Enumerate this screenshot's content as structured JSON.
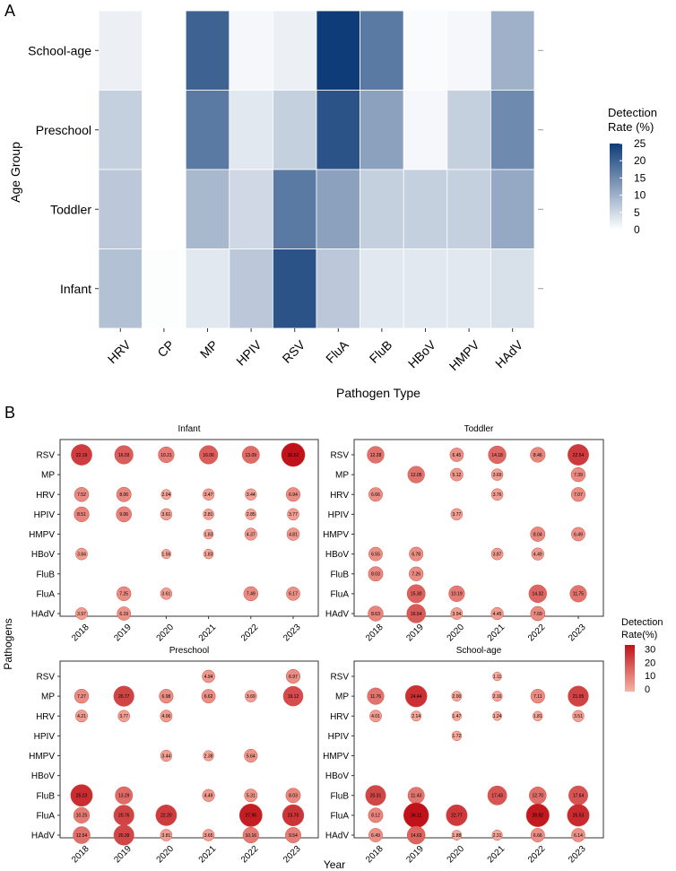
{
  "panel_a": {
    "label": "A"
  },
  "panel_b": {
    "label": "B"
  },
  "chart_data": [
    {
      "type": "heatmap",
      "xlabel": "Pathogen Type",
      "ylabel": "Age Group",
      "x_categories": [
        "HRV",
        "CP",
        "MP",
        "HPIV",
        "RSV",
        "FluA",
        "FluB",
        "HBoV",
        "HMPV",
        "HAdV"
      ],
      "y_categories": [
        "School-age",
        "Preschool",
        "Toddler",
        "Infant"
      ],
      "values": [
        [
          2,
          0,
          20,
          1,
          2,
          25,
          17,
          0.5,
          1,
          10
        ],
        [
          6,
          0,
          17,
          3,
          6,
          22,
          12,
          1,
          6,
          15
        ],
        [
          7,
          0,
          9,
          5,
          17,
          12,
          6,
          6,
          6,
          11
        ],
        [
          8,
          0.3,
          3,
          7,
          22,
          7,
          3,
          3,
          3,
          4
        ]
      ],
      "legend": {
        "title": "Detection Rate (%)",
        "ticks": [
          0,
          5,
          10,
          15,
          20,
          25
        ],
        "position": "right"
      },
      "color_scale": {
        "low": "#ffffff",
        "high": "#0e3c78"
      }
    },
    {
      "type": "scatter",
      "subtype": "bubble-facets",
      "xlabel": "Year",
      "ylabel": "Pathogens",
      "years": [
        "2018",
        "2019",
        "2020",
        "2021",
        "2022",
        "2023"
      ],
      "legend": {
        "title": "Detection Rate(%)",
        "ticks": [
          0,
          10,
          20,
          30
        ],
        "position": "right"
      },
      "facets": [
        {
          "title": "Infant",
          "pathogens": [
            "RSV",
            "MP",
            "HRV",
            "HPIV",
            "HMPV",
            "HBoV",
            "FluB",
            "FluA",
            "HAdV"
          ],
          "values": [
            [
              22.19,
              16.03,
              10.21,
              16.06,
              13.09,
              30.52
            ],
            [
              null,
              null,
              null,
              null,
              null,
              null
            ],
            [
              7.52,
              8.06,
              2.04,
              3.47,
              3.44,
              6.94
            ],
            [
              8.51,
              9.06,
              3.61,
              2.81,
              2.85,
              3.77
            ],
            [
              null,
              null,
              null,
              1.83,
              4.37,
              4.81
            ],
            [
              3.84,
              null,
              1.56,
              1.83,
              null,
              null
            ],
            [
              null,
              null,
              null,
              null,
              null,
              null
            ],
            [
              null,
              7.25,
              3.61,
              null,
              7.49,
              6.17
            ],
            [
              3.97,
              6.19,
              null,
              null,
              null,
              null
            ]
          ]
        },
        {
          "title": "Toddler",
          "pathogens": [
            "RSV",
            "MP",
            "HRV",
            "HPIV",
            "HMPV",
            "HBoV",
            "FluB",
            "FluA",
            "HAdV"
          ],
          "values": [
            [
              12.28,
              null,
              6.45,
              14.18,
              8.46,
              22.54
            ],
            [
              null,
              12.05,
              5.12,
              3.69,
              null,
              7.39
            ],
            [
              6.66,
              null,
              null,
              3.76,
              null,
              7.07
            ],
            [
              null,
              null,
              3.77,
              null,
              null,
              null
            ],
            [
              null,
              null,
              null,
              null,
              8.04,
              6.49
            ],
            [
              6.55,
              6.78,
              null,
              3.87,
              4.49,
              null
            ],
            [
              8.03,
              7.26,
              null,
              null,
              null,
              null
            ],
            [
              null,
              15.3,
              10.19,
              null,
              14.32,
              11.75
            ],
            [
              8.63,
              16.54,
              3.94,
              4.45,
              7.69,
              null
            ]
          ]
        },
        {
          "title": "Preschool",
          "pathogens": [
            "RSV",
            "MP",
            "HRV",
            "HPIV",
            "HMPV",
            "HBoV",
            "FluB",
            "FluA",
            "HAdV"
          ],
          "values": [
            [
              null,
              null,
              null,
              4.94,
              null,
              6.97
            ],
            [
              7.27,
              20.77,
              6.98,
              6.62,
              3.69,
              19.12
            ],
            [
              4.21,
              3.77,
              4.06,
              null,
              null,
              null
            ],
            [
              null,
              null,
              null,
              null,
              null,
              null
            ],
            [
              null,
              null,
              3.44,
              2.38,
              5.64,
              null
            ],
            [
              null,
              null,
              null,
              null,
              null,
              null
            ],
            [
              25.23,
              13.29,
              null,
              4.49,
              5.31,
              8.03
            ],
            [
              10.25,
              20.76,
              22.2,
              null,
              27.96,
              23.7
            ],
            [
              12.54,
              20.39,
              3.81,
              3.65,
              10.16,
              9.54
            ]
          ]
        },
        {
          "title": "School-age",
          "pathogens": [
            "RSV",
            "MP",
            "HRV",
            "HPIV",
            "HMPV",
            "HBoV",
            "FluB",
            "FluA",
            "HAdV"
          ],
          "values": [
            [
              null,
              null,
              null,
              1.11,
              null,
              null
            ],
            [
              11.76,
              24.44,
              2.0,
              2.16,
              7.11,
              21.05
            ],
            [
              4.01,
              2.14,
              1.47,
              1.24,
              1.81,
              3.51
            ],
            [
              null,
              null,
              1.72,
              null,
              null,
              null
            ],
            [
              null,
              null,
              null,
              null,
              null,
              null
            ],
            [
              null,
              null,
              null,
              null,
              null,
              null
            ],
            [
              20.31,
              11.43,
              null,
              17.43,
              12.7,
              17.64
            ],
            [
              8.12,
              36.11,
              22.77,
              null,
              28.82,
              25.53
            ],
            [
              6.49,
              14.63,
              1.88,
              2.31,
              6.66,
              6.14
            ]
          ]
        }
      ]
    }
  ]
}
